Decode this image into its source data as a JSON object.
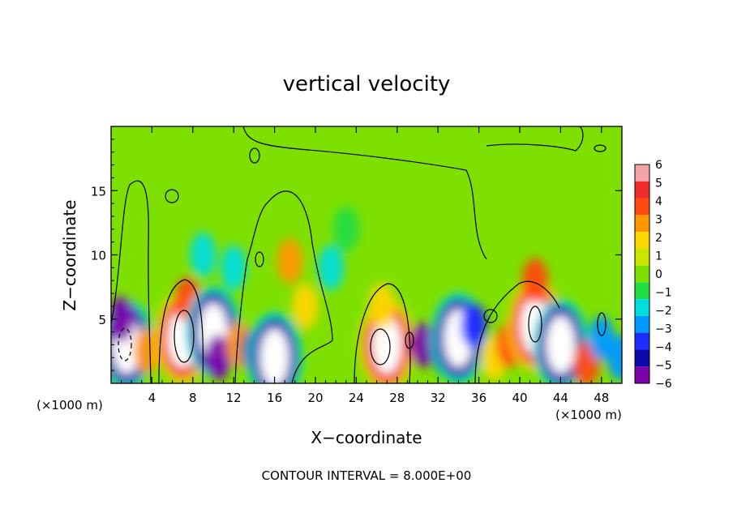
{
  "chart_data": {
    "type": "heatmap",
    "title": "vertical velocity",
    "xlabel": "X−coordinate",
    "ylabel": "Z−coordinate",
    "x_unit_left": "(×1000 m)",
    "x_unit_right": "(×1000 m)",
    "xlim": [
      0,
      50
    ],
    "ylim": [
      0,
      20
    ],
    "x_ticks": [
      4,
      8,
      12,
      16,
      20,
      24,
      28,
      32,
      36,
      40,
      44,
      48
    ],
    "y_ticks": [
      5,
      10,
      15
    ],
    "colorbar_labels": [
      "6",
      "5",
      "4",
      "3",
      "2",
      "1",
      "0",
      "−1",
      "−2",
      "−3",
      "−4",
      "−5",
      "−6"
    ],
    "colorbar_levels": [
      6,
      5,
      4,
      3,
      2,
      1,
      0,
      -1,
      -2,
      -3,
      -4,
      -5,
      -6
    ],
    "colorbar_colors": [
      "#f4a4a4",
      "#ee2a2a",
      "#ff4a10",
      "#ff9800",
      "#ffd700",
      "#c8e600",
      "#7ee000",
      "#22dd44",
      "#00dddd",
      "#0099ff",
      "#1b2dff",
      "#0a0aa8",
      "#7a00aa"
    ],
    "legend": "right",
    "grid": false,
    "footer": "CONTOUR INTERVAL = 8.000E+00",
    "cells": [
      {
        "x": 1.5,
        "z": 3.0,
        "v": -30
      },
      {
        "x": 1.0,
        "z": 5.0,
        "v": -6
      },
      {
        "x": 3.5,
        "z": 2.5,
        "v": 3
      },
      {
        "x": 7.0,
        "z": 3.5,
        "v": 30
      },
      {
        "x": 7.5,
        "z": 6.5,
        "v": 4
      },
      {
        "x": 10.0,
        "z": 4.0,
        "v": -8
      },
      {
        "x": 10.5,
        "z": 2.0,
        "v": -6
      },
      {
        "x": 12.5,
        "z": 3.0,
        "v": 3
      },
      {
        "x": 14.0,
        "z": 2.5,
        "v": -5
      },
      {
        "x": 16.0,
        "z": 2.0,
        "v": -8
      },
      {
        "x": 17.5,
        "z": 9.5,
        "v": 3
      },
      {
        "x": 19.0,
        "z": 6.0,
        "v": 2
      },
      {
        "x": 21.5,
        "z": 9.0,
        "v": -2
      },
      {
        "x": 23.0,
        "z": 12.0,
        "v": -1
      },
      {
        "x": 27.0,
        "z": 3.0,
        "v": 30
      },
      {
        "x": 26.5,
        "z": 6.0,
        "v": 2
      },
      {
        "x": 30.5,
        "z": 3.0,
        "v": -6
      },
      {
        "x": 32.5,
        "z": 2.5,
        "v": -5
      },
      {
        "x": 34.0,
        "z": 3.5,
        "v": -8
      },
      {
        "x": 35.5,
        "z": 4.5,
        "v": -4
      },
      {
        "x": 37.5,
        "z": 2.0,
        "v": 2
      },
      {
        "x": 39.0,
        "z": 3.0,
        "v": 4
      },
      {
        "x": 41.5,
        "z": 4.5,
        "v": 20
      },
      {
        "x": 41.5,
        "z": 8.0,
        "v": 4
      },
      {
        "x": 44.0,
        "z": 3.0,
        "v": -8
      },
      {
        "x": 46.5,
        "z": 1.5,
        "v": 4
      },
      {
        "x": 48.0,
        "z": 3.5,
        "v": -3
      },
      {
        "x": 49.8,
        "z": 2.0,
        "v": -3
      },
      {
        "x": 9.0,
        "z": 10.0,
        "v": -2
      },
      {
        "x": 12.0,
        "z": 9.0,
        "v": -2
      }
    ]
  }
}
